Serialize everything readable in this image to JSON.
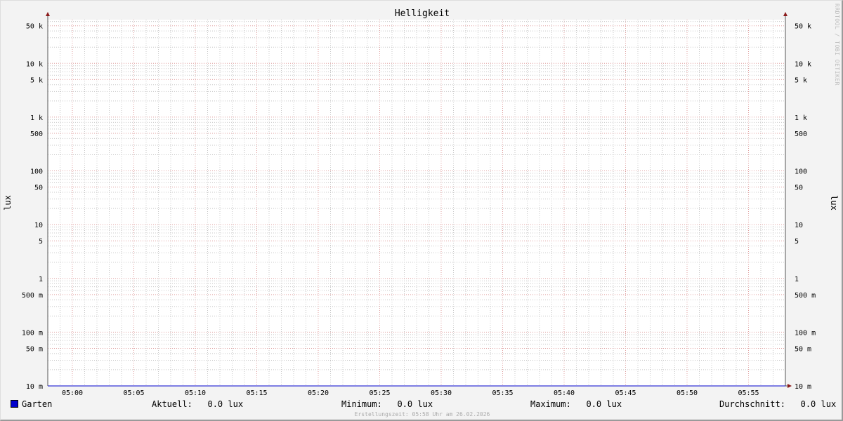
{
  "chart_data": {
    "type": "line",
    "title": "Helligkeit",
    "ylabel": "lux",
    "ylabel_right": "lux",
    "yscale": "log",
    "ylim": [
      0.01,
      65000
    ],
    "xlim": [
      "04:58",
      "05:58"
    ],
    "x_ticks": [
      "05:00",
      "05:05",
      "05:10",
      "05:15",
      "05:20",
      "05:25",
      "05:30",
      "05:35",
      "05:40",
      "05:45",
      "05:50",
      "05:55"
    ],
    "y_ticks": [
      {
        "value": 0.01,
        "label": "10 m"
      },
      {
        "value": 0.05,
        "label": "50 m"
      },
      {
        "value": 0.1,
        "label": "100 m"
      },
      {
        "value": 0.5,
        "label": "500 m"
      },
      {
        "value": 1,
        "label": "1"
      },
      {
        "value": 5,
        "label": "5"
      },
      {
        "value": 10,
        "label": "10"
      },
      {
        "value": 50,
        "label": "50"
      },
      {
        "value": 100,
        "label": "100"
      },
      {
        "value": 500,
        "label": "500"
      },
      {
        "value": 1000,
        "label": "1 k"
      },
      {
        "value": 5000,
        "label": "5 k"
      },
      {
        "value": 10000,
        "label": "10 k"
      },
      {
        "value": 50000,
        "label": "50 k"
      }
    ],
    "grid": true,
    "series": [
      {
        "name": "Garten",
        "color": "#0000cc",
        "values": [
          0.0,
          0.0
        ]
      }
    ]
  },
  "legend": {
    "series_name": "Garten",
    "current_label": "Aktuell:",
    "current_value": "0.0 lux",
    "min_label": "Minimum:",
    "min_value": "0.0 lux",
    "max_label": "Maximum:",
    "max_value": "0.0 lux",
    "avg_label": "Durchschnitt:",
    "avg_value": "0.0 lux"
  },
  "footer": "Erstellungszeit: 05:58 Uhr am 26.02.2026",
  "watermark": "RRDTOOL / TOBI OETIKER",
  "colors": {
    "major_grid": "#e0a0a0",
    "minor_grid": "#c8c8c8",
    "axis": "#555555",
    "arrow": "#8b1a1a"
  }
}
